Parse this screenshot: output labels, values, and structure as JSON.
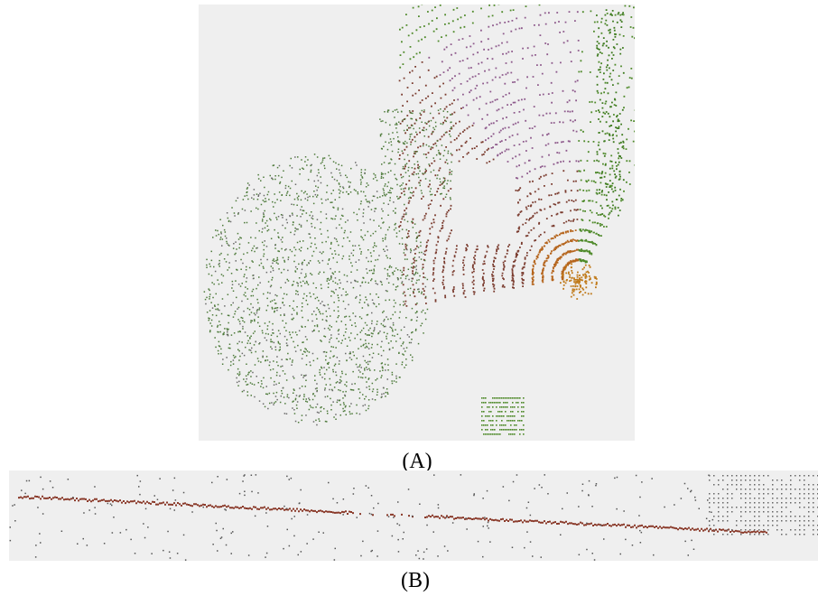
{
  "figure": {
    "panels": [
      {
        "label": "(A)"
      },
      {
        "label": "(B)"
      }
    ]
  }
}
